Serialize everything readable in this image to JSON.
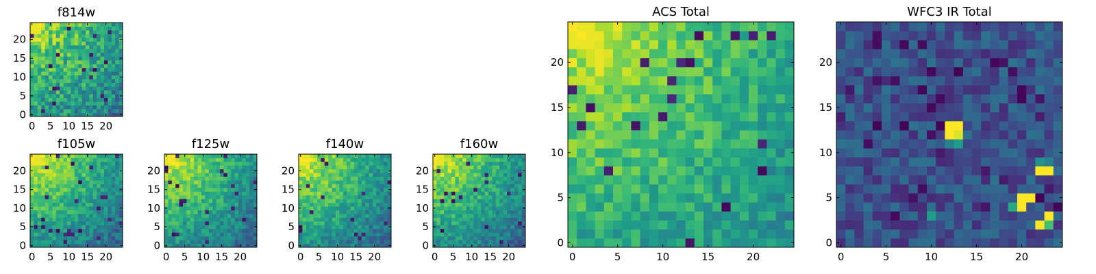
{
  "chart_data": [
    {
      "type": "heatmap",
      "title": "f814w",
      "xticks": [
        0,
        5,
        10,
        15,
        20
      ],
      "yticks": [
        0,
        5,
        10,
        15,
        20
      ],
      "xlim": [
        -0.5,
        24.5
      ],
      "ylim": [
        -0.5,
        24.5
      ],
      "grid": false,
      "colormap": "viridis",
      "bright_corner": "top-left",
      "value_range": [
        0,
        1
      ]
    },
    {
      "type": "heatmap",
      "title": "f105w",
      "xticks": [
        0,
        5,
        10,
        15,
        20
      ],
      "yticks": [
        0,
        5,
        10,
        15,
        20
      ],
      "xlim": [
        -0.5,
        24.5
      ],
      "ylim": [
        -0.5,
        24.5
      ],
      "grid": false,
      "colormap": "viridis",
      "bright_corner": "top-left",
      "value_range": [
        0,
        1
      ]
    },
    {
      "type": "heatmap",
      "title": "f125w",
      "xticks": [
        0,
        5,
        10,
        15,
        20
      ],
      "yticks": [
        0,
        5,
        10,
        15,
        20
      ],
      "xlim": [
        -0.5,
        24.5
      ],
      "ylim": [
        -0.5,
        24.5
      ],
      "grid": false,
      "colormap": "viridis",
      "bright_corner": "top-left",
      "value_range": [
        0,
        1
      ]
    },
    {
      "type": "heatmap",
      "title": "f140w",
      "xticks": [
        0,
        5,
        10,
        15,
        20
      ],
      "yticks": [
        0,
        5,
        10,
        15,
        20
      ],
      "xlim": [
        -0.5,
        24.5
      ],
      "ylim": [
        -0.5,
        24.5
      ],
      "grid": false,
      "colormap": "viridis",
      "bright_corner": "top-left",
      "value_range": [
        0,
        1
      ]
    },
    {
      "type": "heatmap",
      "title": "f160w",
      "xticks": [
        0,
        5,
        10,
        15,
        20
      ],
      "yticks": [
        0,
        5,
        10,
        15,
        20
      ],
      "xlim": [
        -0.5,
        24.5
      ],
      "ylim": [
        -0.5,
        24.5
      ],
      "grid": false,
      "colormap": "viridis",
      "bright_corner": "top-left",
      "value_range": [
        0,
        1
      ]
    },
    {
      "type": "heatmap",
      "title": "ACS Total",
      "xticks": [
        0,
        5,
        10,
        15,
        20
      ],
      "yticks": [
        0,
        5,
        10,
        15,
        20
      ],
      "xlim": [
        -0.5,
        24.5
      ],
      "ylim": [
        -0.5,
        24.5
      ],
      "grid": false,
      "colormap": "viridis",
      "bright_corner": "top-left",
      "value_range": [
        0,
        1
      ]
    },
    {
      "type": "heatmap",
      "title": "WFC3 IR Total",
      "xticks": [
        0,
        5,
        10,
        15,
        20
      ],
      "yticks": [
        0,
        5,
        10,
        15,
        20
      ],
      "xlim": [
        -0.5,
        24.5
      ],
      "ylim": [
        -0.5,
        24.5
      ],
      "grid": false,
      "colormap": "viridis",
      "background": "dark",
      "bright_pixels": [
        {
          "x": 12,
          "y": 13,
          "value": 1.0
        },
        {
          "x": 13,
          "y": 13,
          "value": 1.0
        },
        {
          "x": 12,
          "y": 12,
          "value": 1.0
        },
        {
          "x": 13,
          "y": 12,
          "value": 0.95
        },
        {
          "x": 13,
          "y": 11,
          "value": 0.55
        },
        {
          "x": 12,
          "y": 11,
          "value": 0.45
        },
        {
          "x": 22,
          "y": 8,
          "value": 1.0
        },
        {
          "x": 23,
          "y": 8,
          "value": 1.0
        },
        {
          "x": 22,
          "y": 9,
          "value": 0.5
        },
        {
          "x": 23,
          "y": 9,
          "value": 0.45
        },
        {
          "x": 20,
          "y": 5,
          "value": 1.0
        },
        {
          "x": 21,
          "y": 5,
          "value": 1.0
        },
        {
          "x": 20,
          "y": 4,
          "value": 1.0
        },
        {
          "x": 19,
          "y": 4,
          "value": 0.6
        },
        {
          "x": 23,
          "y": 3,
          "value": 1.0
        },
        {
          "x": 22,
          "y": 2,
          "value": 1.0
        },
        {
          "x": 23,
          "y": 2,
          "value": 0.7
        },
        {
          "x": 10,
          "y": 3,
          "value": 0.55
        }
      ]
    }
  ]
}
